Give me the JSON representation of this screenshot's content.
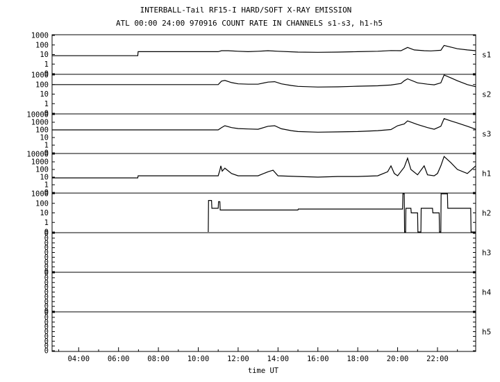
{
  "chart_data": {
    "type": "line",
    "title": "INTERBALL-Tail RF15-I HARD/SOFT X-RAY EMISSION",
    "subtitle": "ATL 00:00 24:00 970916  COUNT RATE IN CHANNELS s1-s3, h1-h5",
    "xlabel": "time UT",
    "x_ticks": [
      "04:00",
      "06:00",
      "08:00",
      "10:00",
      "12:00",
      "14:00",
      "16:00",
      "18:00",
      "20:00",
      "22:00"
    ],
    "xlim": [
      "02:40",
      "23:55"
    ],
    "yscale": "log",
    "grid": false,
    "series": [
      {
        "name": "s1",
        "ylim": [
          0.1,
          1000
        ],
        "y_ticks": [
          "1000",
          "100",
          "10",
          "1",
          "0"
        ],
        "x": [
          "02:40",
          "06:58",
          "06:59",
          "11:00",
          "11:10",
          "11:30",
          "12:00",
          "12:30",
          "13:00",
          "13:30",
          "14:00",
          "15:00",
          "16:00",
          "17:00",
          "18:00",
          "19:00",
          "19:40",
          "20:10",
          "20:30",
          "20:50",
          "21:20",
          "21:40",
          "22:10",
          "22:20",
          "22:40",
          "23:00",
          "23:30",
          "23:55"
        ],
        "y": [
          7.5,
          7.5,
          20,
          20,
          25,
          25,
          22,
          20,
          22,
          25,
          22,
          18,
          17,
          18,
          20,
          22,
          26,
          25,
          55,
          30,
          25,
          24,
          28,
          90,
          60,
          40,
          30,
          25
        ]
      },
      {
        "name": "s2",
        "ylim": [
          0.1,
          1000
        ],
        "y_ticks": [
          "1000",
          "100",
          "10",
          "1",
          "0"
        ],
        "x": [
          "02:40",
          "11:00",
          "11:10",
          "11:20",
          "11:40",
          "12:00",
          "12:30",
          "13:00",
          "13:30",
          "13:50",
          "14:10",
          "14:40",
          "15:00",
          "16:00",
          "17:00",
          "18:00",
          "19:00",
          "19:40",
          "20:10",
          "20:20",
          "20:30",
          "21:00",
          "21:30",
          "21:50",
          "22:10",
          "22:20",
          "22:40",
          "23:00",
          "23:30",
          "23:55"
        ],
        "y": [
          100,
          100,
          230,
          270,
          160,
          120,
          110,
          110,
          180,
          200,
          120,
          80,
          65,
          55,
          58,
          68,
          75,
          90,
          130,
          250,
          400,
          150,
          110,
          95,
          150,
          1000,
          500,
          250,
          100,
          60
        ]
      },
      {
        "name": "s3",
        "ylim": [
          0.1,
          10000
        ],
        "y_ticks": [
          "10000",
          "1000",
          "100",
          "10",
          "1",
          "0"
        ],
        "x": [
          "02:40",
          "11:00",
          "11:10",
          "11:20",
          "11:40",
          "12:00",
          "12:30",
          "13:00",
          "13:30",
          "13:50",
          "14:10",
          "14:40",
          "15:00",
          "16:00",
          "17:00",
          "18:00",
          "19:00",
          "19:40",
          "20:00",
          "20:20",
          "20:30",
          "21:00",
          "21:30",
          "21:50",
          "22:10",
          "22:20",
          "22:40",
          "23:00",
          "23:30",
          "23:55"
        ],
        "y": [
          100,
          100,
          200,
          350,
          200,
          150,
          130,
          120,
          300,
          350,
          140,
          80,
          60,
          50,
          55,
          60,
          80,
          110,
          350,
          600,
          1500,
          500,
          200,
          120,
          300,
          3000,
          1500,
          800,
          300,
          120
        ]
      },
      {
        "name": "h1",
        "ylim": [
          0.1,
          10000
        ],
        "y_ticks": [
          "10000",
          "1000",
          "100",
          "10",
          "1",
          "0"
        ],
        "x": [
          "02:40",
          "06:58",
          "06:59",
          "11:00",
          "11:05",
          "11:08",
          "11:12",
          "11:20",
          "11:40",
          "12:00",
          "13:00",
          "13:30",
          "13:45",
          "14:00",
          "15:00",
          "16:00",
          "17:00",
          "18:00",
          "19:00",
          "19:30",
          "19:40",
          "19:50",
          "20:00",
          "20:20",
          "20:30",
          "20:40",
          "21:00",
          "21:20",
          "21:30",
          "21:50",
          "22:00",
          "22:10",
          "22:20",
          "22:40",
          "23:00",
          "23:30",
          "23:55"
        ],
        "y": [
          8,
          8,
          15,
          15,
          80,
          300,
          60,
          150,
          30,
          15,
          15,
          50,
          80,
          15,
          12,
          10,
          12,
          12,
          15,
          50,
          300,
          30,
          15,
          200,
          3000,
          100,
          20,
          300,
          20,
          15,
          30,
          300,
          5000,
          800,
          100,
          30,
          300
        ]
      },
      {
        "name": "h2",
        "ylim": [
          0.1,
          1000
        ],
        "y_ticks": [
          "1000",
          "100",
          "10",
          "1",
          "0"
        ],
        "x": [
          "10:30",
          "10:31",
          "10:40",
          "10:41",
          "11:00",
          "11:01",
          "11:05",
          "11:06",
          "15:00",
          "15:01",
          "20:15",
          "20:16",
          "20:20",
          "20:21",
          "20:24",
          "20:25",
          "20:40",
          "20:41",
          "21:00",
          "21:01",
          "21:10",
          "21:11",
          "21:45",
          "21:46",
          "22:05",
          "22:06",
          "22:10",
          "22:11",
          "22:30",
          "22:31",
          "23:40",
          "23:41",
          "23:55"
        ],
        "y": [
          0.1,
          200,
          200,
          30,
          30,
          150,
          150,
          20,
          20,
          25,
          25,
          1000,
          1000,
          0.1,
          0.1,
          30,
          30,
          10,
          10,
          0.1,
          0.1,
          30,
          30,
          10,
          10,
          0.1,
          0.1,
          1000,
          1000,
          30,
          30,
          0.1,
          0.1
        ]
      },
      {
        "name": "h3",
        "ylim": [
          0,
          1
        ],
        "y_ticks": [
          "0",
          "0",
          "0",
          "0",
          "0",
          "0",
          "0",
          "0",
          "0"
        ],
        "x": [],
        "y": []
      },
      {
        "name": "h4",
        "ylim": [
          0,
          1
        ],
        "y_ticks": [
          "0",
          "0",
          "0",
          "0",
          "0",
          "0",
          "0",
          "0",
          "0"
        ],
        "x": [],
        "y": []
      },
      {
        "name": "h5",
        "ylim": [
          0,
          1
        ],
        "y_ticks": [
          "0",
          "0",
          "0",
          "0",
          "0",
          "0",
          "0",
          "0",
          "0"
        ],
        "x": [],
        "y": []
      }
    ]
  }
}
